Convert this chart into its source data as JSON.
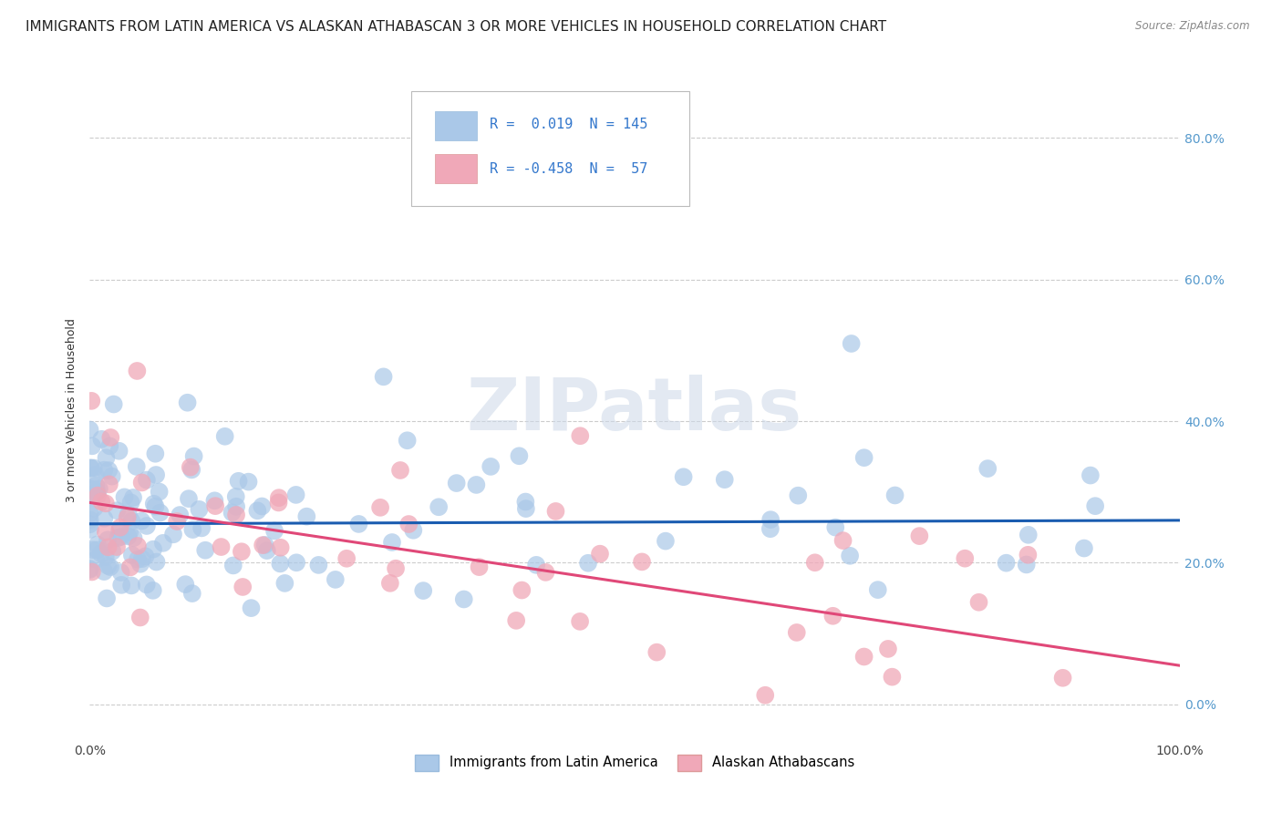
{
  "title": "IMMIGRANTS FROM LATIN AMERICA VS ALASKAN ATHABASCAN 3 OR MORE VEHICLES IN HOUSEHOLD CORRELATION CHART",
  "source_text": "Source: ZipAtlas.com",
  "ylabel": "3 or more Vehicles in Household",
  "xlim": [
    0.0,
    1.0
  ],
  "ylim": [
    -0.05,
    0.88
  ],
  "ytick_labels": [
    "0.0%",
    "20.0%",
    "40.0%",
    "60.0%",
    "80.0%"
  ],
  "ytick_vals": [
    0.0,
    0.2,
    0.4,
    0.6,
    0.8
  ],
  "xtick_labels": [
    "0.0%",
    "100.0%"
  ],
  "xtick_vals": [
    0.0,
    1.0
  ],
  "r_blue": 0.019,
  "n_blue": 145,
  "r_pink": -0.458,
  "n_pink": 57,
  "blue_color": "#aac8e8",
  "pink_color": "#f0a8b8",
  "blue_line_color": "#1a5cb0",
  "pink_line_color": "#e04878",
  "legend_label_blue": "Immigrants from Latin America",
  "legend_label_pink": "Alaskan Athabascans",
  "watermark": "ZIPatlas",
  "title_fontsize": 11,
  "axis_fontsize": 10,
  "background_color": "#ffffff",
  "grid_color": "#cccccc",
  "blue_trend_start_y": 0.255,
  "blue_trend_end_y": 0.26,
  "pink_trend_start_y": 0.285,
  "pink_trend_end_y": 0.055
}
